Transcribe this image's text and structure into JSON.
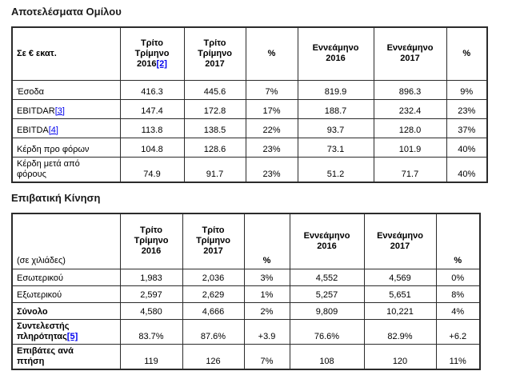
{
  "styles": {
    "background": "#ffffff",
    "text_color": "#000000",
    "border_color": "#2b2b2b",
    "link_color": "#0000ee"
  },
  "sections": [
    {
      "title": "Αποτελέσματα Ομίλου",
      "header": {
        "cells": [
          {
            "text": "Σε € εκατ.",
            "name": "unit-header",
            "align": "left"
          },
          {
            "text": "Τρίτο\nΤρίμηνο\n2016",
            "ref": "[2]",
            "name": "col-third-quarter-2016"
          },
          {
            "text": "Τρίτο\nΤρίμηνο\n2017",
            "name": "col-third-quarter-2017"
          },
          {
            "text": "%",
            "name": "col-quarter-change-pct"
          },
          {
            "text": "Εννεάμηνο\n2016",
            "name": "col-nine-month-2016"
          },
          {
            "text": "Εννεάμηνο\n2017",
            "name": "col-nine-month-2017"
          },
          {
            "text": "%",
            "name": "col-nine-month-change-pct"
          }
        ]
      },
      "rows": [
        {
          "label": "Έσοδα",
          "values": [
            "416.3",
            "445.6",
            "7%",
            "819.9",
            "896.3",
            "9%"
          ]
        },
        {
          "label": "EBITDAR",
          "ref": "[3]",
          "values": [
            "147.4",
            "172.8",
            "17%",
            "188.7",
            "232.4",
            "23%"
          ]
        },
        {
          "label": "EBITDA",
          "ref": "[4]",
          "values": [
            "113.8",
            "138.5",
            "22%",
            "93.7",
            "128.0",
            "37%"
          ]
        },
        {
          "label": "Κέρδη προ φόρων",
          "values": [
            "104.8",
            "128.6",
            "23%",
            "73.1",
            "101.9",
            "40%"
          ]
        },
        {
          "label": "Κέρδη μετά από\nφόρους",
          "values": [
            "74.9",
            "91.7",
            "23%",
            "51.2",
            "71.7",
            "40%"
          ]
        }
      ]
    },
    {
      "title": "Επιβατική Κίνηση",
      "header": {
        "cells": [
          {
            "text": "(σε χιλιάδες)",
            "name": "unit-header",
            "align": "left",
            "valign": "bottom",
            "bold": false
          },
          {
            "text": "Τρίτο\nΤρίμηνο\n2016",
            "name": "col-third-quarter-2016"
          },
          {
            "text": "Τρίτο\nΤρίμηνο\n2017",
            "name": "col-third-quarter-2017"
          },
          {
            "text": "%",
            "valign": "bottom",
            "name": "col-quarter-change-pct"
          },
          {
            "text": "Εννεάμηνο\n2016",
            "name": "col-nine-month-2016"
          },
          {
            "text": "Εννεάμηνο\n2017",
            "name": "col-nine-month-2017"
          },
          {
            "text": "%",
            "valign": "bottom",
            "name": "col-nine-month-change-pct"
          }
        ]
      },
      "rows": [
        {
          "label": "Εσωτερικού",
          "values": [
            "1,983",
            "2,036",
            "3%",
            "4,552",
            "4,569",
            "0%"
          ]
        },
        {
          "label": "Εξωτερικού",
          "values": [
            "2,597",
            "2,629",
            "1%",
            "5,257",
            "5,651",
            "8%"
          ]
        },
        {
          "label": "Σύνολο",
          "bold": true,
          "values": [
            "4,580",
            "4,666",
            "2%",
            "9,809",
            "10,221",
            "4%"
          ]
        },
        {
          "label": "Συντελεστής\nπληρότητας",
          "ref": "[5]",
          "bold": true,
          "values": [
            "83.7%",
            "87.6%",
            "+3.9",
            "76.6%",
            "82.9%",
            "+6.2"
          ]
        },
        {
          "label": "Επιβάτες ανά\nπτήση",
          "bold": true,
          "values": [
            "119",
            "126",
            "7%",
            "108",
            "120",
            "11%"
          ]
        }
      ]
    }
  ]
}
